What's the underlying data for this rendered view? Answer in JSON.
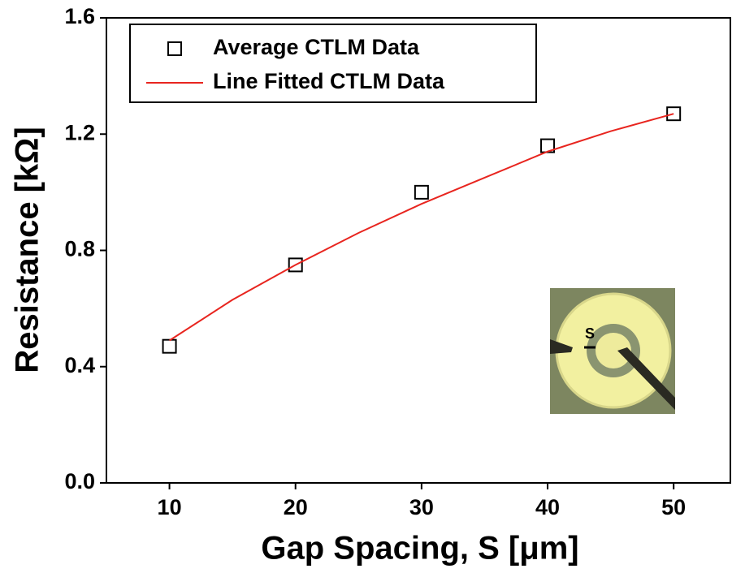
{
  "chart_data": {
    "type": "scatter",
    "x_label": "Gap Spacing, S [μm]",
    "y_label": "Resistance [kΩ]",
    "xlim": [
      5,
      54.5
    ],
    "xticks": [
      10,
      20,
      30,
      40,
      50
    ],
    "ylim": [
      0,
      1.6
    ],
    "yticks": [
      {
        "value": 0,
        "label": "0.0"
      },
      0.4,
      0.8,
      1.2,
      1.6
    ],
    "legend": "top-left",
    "inset_label": "S",
    "series": [
      {
        "name": "Average CTLM Data",
        "style": "markers",
        "color": "#000000",
        "x": [
          10,
          20,
          30,
          40,
          50
        ],
        "values": [
          0.47,
          0.75,
          1.0,
          1.16,
          1.27
        ]
      },
      {
        "name": "Line Fitted CTLM Data",
        "style": "line",
        "color": "#e8251f",
        "x": [
          10,
          15,
          20,
          25,
          30,
          35,
          40,
          45,
          50
        ],
        "values": [
          0.49,
          0.63,
          0.75,
          0.86,
          0.96,
          1.05,
          1.14,
          1.21,
          1.27
        ]
      }
    ]
  }
}
